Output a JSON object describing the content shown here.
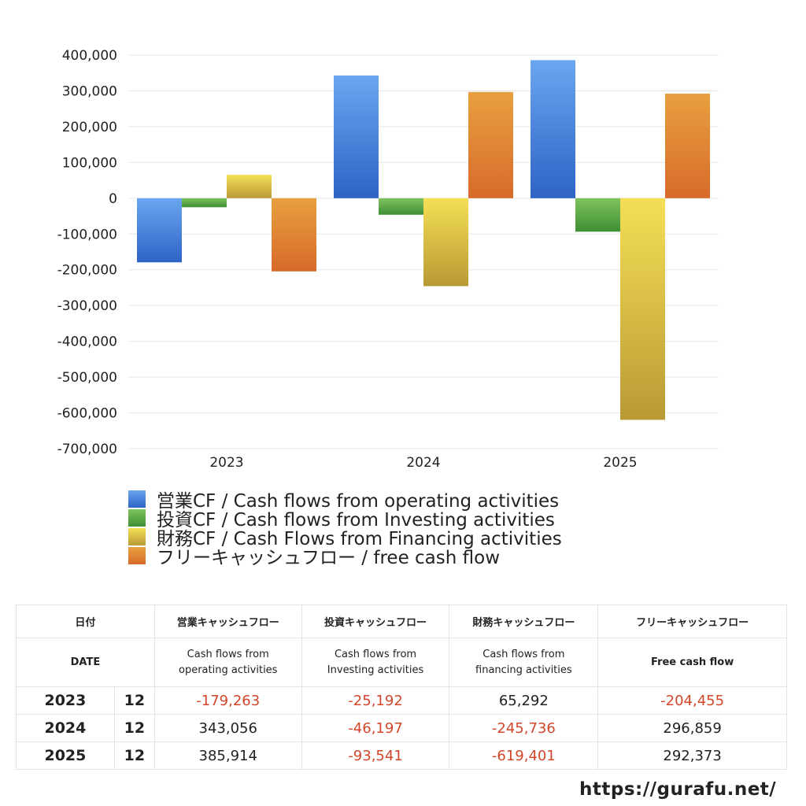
{
  "chart_data": {
    "type": "bar",
    "categories": [
      "2023",
      "2024",
      "2025"
    ],
    "ylim": [
      -700000,
      400000
    ],
    "yticks": [
      400000,
      300000,
      200000,
      100000,
      0,
      -100000,
      -200000,
      -300000,
      -400000,
      -500000,
      -600000,
      -700000
    ],
    "ytick_labels": [
      "400,000",
      "300,000",
      "200,000",
      "100,000",
      "0",
      "-100,000",
      "-200,000",
      "-300,000",
      "-400,000",
      "-500,000",
      "-600,000",
      "-700,000"
    ],
    "grid": true,
    "legend_position": "bottom",
    "series": [
      {
        "name": "営業CF / Cash flows from operating activities",
        "values": [
          -179263,
          343056,
          385914
        ],
        "color_top": "#6aa6f0",
        "color_bottom": "#2e63c6"
      },
      {
        "name": "投資CF / Cash flows from Investing activities",
        "values": [
          -25192,
          -46197,
          -93541
        ],
        "color_top": "#7fc35e",
        "color_bottom": "#3f8f35"
      },
      {
        "name": "財務CF / Cash Flows from Financing activities",
        "values": [
          65292,
          -245736,
          -619401
        ],
        "color_top": "#f5df55",
        "color_bottom": "#b89a35"
      },
      {
        "name": "フリーキャッシュフロー / free cash flow",
        "values": [
          -204455,
          296859,
          292373
        ],
        "color_top": "#e8a040",
        "color_bottom": "#d76a2a"
      }
    ]
  },
  "table": {
    "headers_jp": [
      "日付",
      "",
      "営業キャッシュフロー",
      "投資キャッシュフロー",
      "財務キャッシュフロー",
      "フリーキャッシュフロー"
    ],
    "headers_en": {
      "date": "DATE",
      "op_1": "Cash flows from",
      "op_2": "operating activities",
      "inv_1": "Cash flows from",
      "inv_2": "Investing activities",
      "fin_1": "Cash flows from",
      "fin_2": "financing activities",
      "fcf": "Free cash flow"
    },
    "rows": [
      {
        "year": "2023",
        "month": "12",
        "op": "-179,263",
        "inv": "-25,192",
        "fin": "65,292",
        "fcf": "-204,455"
      },
      {
        "year": "2024",
        "month": "12",
        "op": "343,056",
        "inv": "-46,197",
        "fin": "-245,736",
        "fcf": "296,859"
      },
      {
        "year": "2025",
        "month": "12",
        "op": "385,914",
        "inv": "-93,541",
        "fin": "-619,401",
        "fcf": "292,373"
      }
    ]
  },
  "footer": {
    "url": "https://gurafu.net/"
  }
}
